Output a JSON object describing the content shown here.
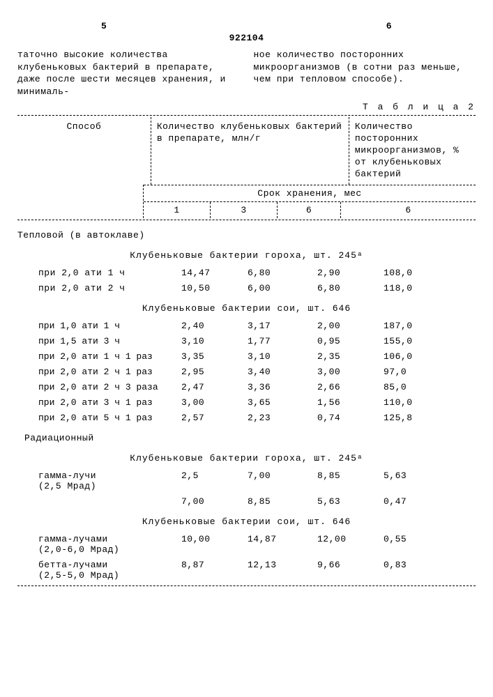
{
  "page_left_num": "5",
  "page_right_num": "6",
  "doc_id": "922104",
  "intro_left": "таточно высокие количества клубеньковых бактерий в препарате, даже после шести месяцев хранения, и минималь-",
  "intro_right": "ное количество посторонних микроорганизмов (в сотни раз меньше, чем при тепловом способе).",
  "table_label": "Т а б л и ц а 2",
  "header": {
    "col_method": "Способ",
    "col_count": "Количество клубеньковых бактерий в препарате, млн/г",
    "col_foreign": "Количество посторонних микроорганизмов, % от клубеньковых бактерий",
    "storage": "Срок хранения, мес",
    "months": [
      "1",
      "3",
      "6",
      "6"
    ]
  },
  "section_thermal": "Тепловой (в автоклаве)",
  "strain_pea": "Клубеньковые бактерии гороха, шт. 245ᵃ",
  "thermal_pea": [
    {
      "label": "при 2,0 ати 1 ч",
      "v": [
        "14,47",
        "6,80",
        "2,90",
        "108,0"
      ]
    },
    {
      "label": "при 2,0 ати 2 ч",
      "v": [
        "10,50",
        "6,00",
        "6,80",
        "118,0"
      ]
    }
  ],
  "strain_soy": "Клубеньковые бактерии сои, шт. 646",
  "thermal_soy": [
    {
      "label": "при 1,0 ати 1 ч",
      "v": [
        "2,40",
        "3,17",
        "2,00",
        "187,0"
      ]
    },
    {
      "label": "при 1,5 ати 3 ч",
      "v": [
        "3,10",
        "1,77",
        "0,95",
        "155,0"
      ]
    },
    {
      "label": "при 2,0 ати 1 ч 1 раз",
      "v": [
        "3,35",
        "3,10",
        "2,35",
        "106,0"
      ]
    },
    {
      "label": "при 2,0 ати 2 ч 1 раз",
      "v": [
        "2,95",
        "3,40",
        "3,00",
        "97,0"
      ]
    },
    {
      "label": "при 2,0 ати 2 ч 3 раза",
      "v": [
        "2,47",
        "3,36",
        "2,66",
        "85,0"
      ]
    },
    {
      "label": "при 2,0 ати 3 ч 1 раз",
      "v": [
        "3,00",
        "3,65",
        "1,56",
        "110,0"
      ]
    },
    {
      "label": "при 2,0 ати 5 ч 1 раз",
      "v": [
        "2,57",
        "2,23",
        "0,74",
        "125,8"
      ]
    }
  ],
  "section_radiation": "Радиационный",
  "rad_pea": [
    {
      "label": "гамма-лучи\n(2,5 Мрад)",
      "v": [
        "2,5",
        "7,00",
        "8,85",
        "5,63"
      ]
    },
    {
      "label": "",
      "v": [
        "7,00",
        "8,85",
        "5,63",
        "0,47"
      ]
    }
  ],
  "rad_soy": [
    {
      "label": "гамма-лучами\n(2,0-6,0 Мрад)",
      "v": [
        "10,00",
        "14,87",
        "12,00",
        "0,55"
      ]
    },
    {
      "label": "бетта-лучами\n(2,5-5,0 Мрад)",
      "v": [
        "8,87",
        "12,13",
        "9,66",
        "0,83"
      ]
    }
  ]
}
